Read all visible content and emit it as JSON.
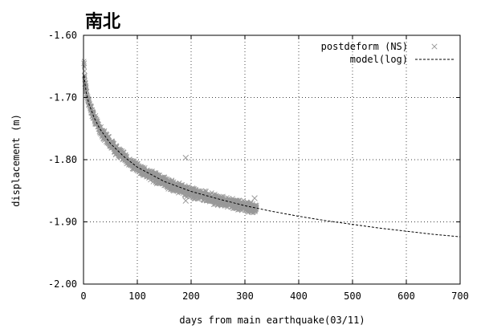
{
  "chart_data": {
    "type": "scatter",
    "title": "南北",
    "xlabel": "days from main earthquake(03/11)",
    "ylabel": "displacement (m)",
    "xlim": [
      0,
      700
    ],
    "ylim": [
      -2.0,
      -1.6
    ],
    "x_ticks": [
      0,
      100,
      200,
      300,
      400,
      500,
      600,
      700
    ],
    "x_tick_labels": [
      "0",
      "100",
      "200",
      "300",
      "400",
      "500",
      "600",
      "700"
    ],
    "y_ticks": [
      -1.6,
      -1.7,
      -1.8,
      -1.9,
      -2.0
    ],
    "y_tick_labels": [
      "-1.60",
      "-1.70",
      "-1.80",
      "-1.90",
      "-2.00"
    ],
    "grid": true,
    "legend_position": "top-right",
    "series": [
      {
        "name": "postdeform (NS)",
        "kind": "scatter",
        "marker": "x",
        "color": "#999999",
        "x": [
          1,
          2,
          3,
          5,
          8,
          12,
          16,
          20,
          25,
          30,
          40,
          50,
          60,
          70,
          80,
          90,
          100,
          110,
          120,
          130,
          140,
          150,
          160,
          170,
          180,
          190,
          200,
          210,
          220,
          230,
          240,
          250,
          260,
          270,
          280,
          290,
          300,
          310,
          320
        ],
        "y": [
          -1.645,
          -1.665,
          -1.678,
          -1.69,
          -1.702,
          -1.714,
          -1.724,
          -1.733,
          -1.742,
          -1.75,
          -1.763,
          -1.774,
          -1.784,
          -1.792,
          -1.8,
          -1.806,
          -1.813,
          -1.818,
          -1.823,
          -1.828,
          -1.832,
          -1.836,
          -1.84,
          -1.843,
          -1.846,
          -1.85,
          -1.853,
          -1.855,
          -1.858,
          -1.86,
          -1.863,
          -1.865,
          -1.867,
          -1.869,
          -1.871,
          -1.873,
          -1.875,
          -1.877,
          -1.879
        ],
        "outliers": [
          {
            "x": 190,
            "y": -1.797
          },
          {
            "x": 190,
            "y": -1.866
          },
          {
            "x": 318,
            "y": -1.862
          }
        ]
      },
      {
        "name": "model(log)",
        "kind": "line",
        "style": "dashed",
        "color": "#000000",
        "x": [
          1,
          5,
          10,
          20,
          30,
          50,
          75,
          100,
          150,
          200,
          250,
          300,
          350,
          400,
          450,
          500,
          550,
          600,
          650,
          700
        ],
        "y": [
          -1.665,
          -1.692,
          -1.71,
          -1.733,
          -1.75,
          -1.774,
          -1.795,
          -1.812,
          -1.835,
          -1.851,
          -1.863,
          -1.874,
          -1.883,
          -1.891,
          -1.898,
          -1.904,
          -1.91,
          -1.915,
          -1.92,
          -1.924
        ]
      }
    ]
  }
}
